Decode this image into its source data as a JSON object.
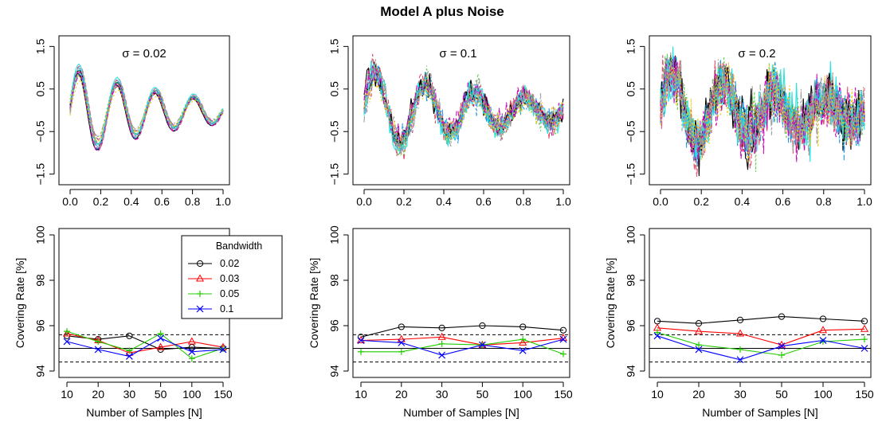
{
  "title": "Model A plus Noise",
  "colors": {
    "c1": "#000000",
    "c2": "#DF536B",
    "c3": "#61D04F",
    "c4": "#2297E6",
    "c5": "#28E2E5",
    "c6": "#CD0BBC",
    "c7": "#F5C710",
    "c8": "#9E9E9E",
    "red": "#FF0000",
    "green": "#22CC00",
    "blue": "#0000FF"
  },
  "top_panels": [
    {
      "sigma_label": "σ = 0.02",
      "noise": 0.02
    },
    {
      "sigma_label": "σ = 0.1",
      "noise": 0.1
    },
    {
      "sigma_label": "σ = 0.2",
      "noise": 0.2
    }
  ],
  "top_axes": {
    "xticks": [
      0.0,
      0.2,
      0.4,
      0.6,
      0.8,
      1.0
    ],
    "xtick_labels": [
      "0.0",
      "0.2",
      "0.4",
      "0.6",
      "0.8",
      "1.0"
    ],
    "yticks": [
      -1.5,
      -0.5,
      0.5,
      1.5
    ],
    "ytick_labels": [
      "−1.5",
      "−0.5",
      "0.5",
      "1.5"
    ],
    "xlim": [
      0,
      1
    ],
    "ylim": [
      -1.6,
      1.6
    ]
  },
  "bottom_axes": {
    "categories": [
      "10",
      "20",
      "30",
      "50",
      "100",
      "150"
    ],
    "yticks": [
      94,
      96,
      98,
      100
    ],
    "ytick_labels": [
      "94",
      "96",
      "98",
      "100"
    ],
    "ylim": [
      94,
      100
    ],
    "xlabel": "Number of Samples [N]",
    "ylabel": "Covering Rate [%]",
    "reference_line": 95,
    "dashed_lines": [
      94.4,
      95.6
    ]
  },
  "legend": {
    "title": "Bandwidth",
    "entries": [
      "0.02",
      "0.03",
      "0.05",
      "0.1"
    ]
  },
  "chart_data": [
    {
      "type": "line",
      "title": "σ = 0.02",
      "xlim": [
        0,
        1
      ],
      "ylim": [
        -1.6,
        1.6
      ],
      "description_series": "16 curves: damped oscillation, main curve peaks ~0.95 at x≈0.06, trough ~-0.75 at x≈0.19, peak ~0.45 at x≈0.31, trough ~-0.3 at x≈0.43, then smaller oscillation around 0"
    },
    {
      "type": "line",
      "title": "σ = 0.1",
      "xlim": [
        0,
        1
      ],
      "ylim": [
        -1.6,
        1.6
      ]
    },
    {
      "type": "line",
      "title": "σ = 0.2",
      "xlim": [
        0,
        1
      ],
      "ylim": [
        -1.6,
        1.6
      ]
    },
    {
      "type": "line",
      "title": "",
      "categories": [
        "10",
        "20",
        "30",
        "50",
        "100",
        "150"
      ],
      "ylim": [
        94,
        100
      ],
      "xlabel": "Number of Samples [N]",
      "ylabel": "Covering Rate [%]",
      "series": [
        {
          "name": "0.02",
          "values": [
            95.55,
            95.4,
            95.55,
            94.95,
            95.05,
            95.0
          ]
        },
        {
          "name": "0.03",
          "values": [
            95.65,
            95.35,
            94.8,
            95.05,
            95.3,
            95.05
          ]
        },
        {
          "name": "0.05",
          "values": [
            95.75,
            95.3,
            94.9,
            95.65,
            94.55,
            95.0
          ]
        },
        {
          "name": "0.1",
          "values": [
            95.3,
            94.95,
            94.65,
            95.45,
            94.85,
            94.95
          ]
        }
      ]
    },
    {
      "type": "line",
      "title": "",
      "categories": [
        "10",
        "20",
        "30",
        "50",
        "100",
        "150"
      ],
      "ylim": [
        94,
        100
      ],
      "xlabel": "Number of Samples [N]",
      "ylabel": "Covering Rate [%]",
      "series": [
        {
          "name": "0.02",
          "values": [
            95.5,
            95.95,
            95.9,
            96.0,
            95.95,
            95.8
          ]
        },
        {
          "name": "0.03",
          "values": [
            95.35,
            95.4,
            95.5,
            95.15,
            95.25,
            95.45
          ]
        },
        {
          "name": "0.05",
          "values": [
            94.85,
            94.85,
            95.2,
            95.15,
            95.4,
            94.75
          ]
        },
        {
          "name": "0.1",
          "values": [
            95.35,
            95.25,
            94.7,
            95.15,
            94.9,
            95.4
          ]
        }
      ]
    },
    {
      "type": "line",
      "title": "",
      "categories": [
        "10",
        "20",
        "30",
        "50",
        "100",
        "150"
      ],
      "ylim": [
        94,
        100
      ],
      "xlabel": "Number of Samples [N]",
      "ylabel": "Covering Rate [%]",
      "series": [
        {
          "name": "0.02",
          "values": [
            96.2,
            96.1,
            96.25,
            96.4,
            96.3,
            96.2
          ]
        },
        {
          "name": "0.03",
          "values": [
            95.9,
            95.75,
            95.65,
            95.15,
            95.8,
            95.85
          ]
        },
        {
          "name": "0.05",
          "values": [
            95.7,
            95.15,
            94.95,
            94.7,
            95.3,
            95.4
          ]
        },
        {
          "name": "0.1",
          "values": [
            95.55,
            94.95,
            94.5,
            95.1,
            95.35,
            95.0
          ]
        }
      ]
    }
  ]
}
